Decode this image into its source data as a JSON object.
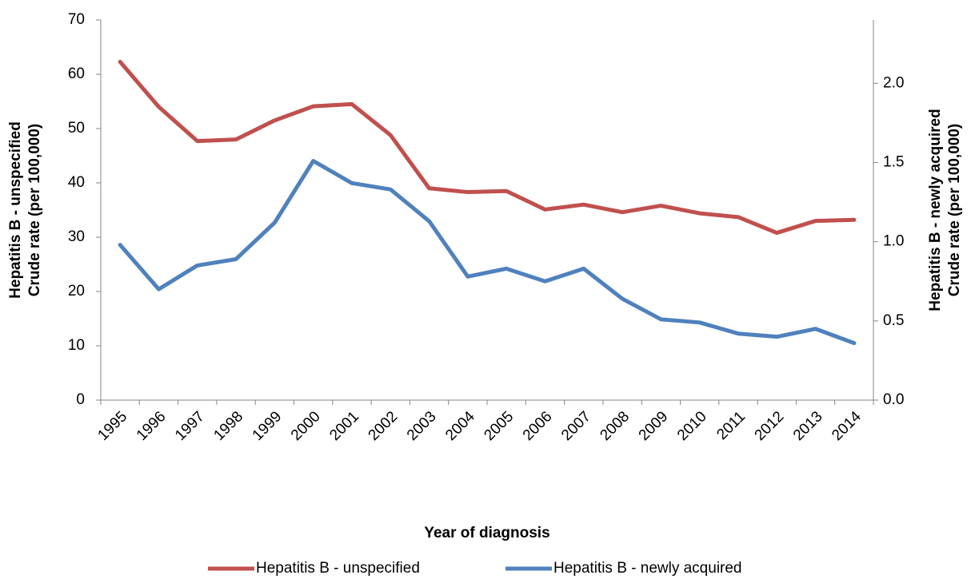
{
  "chart_data": {
    "type": "line",
    "x_label": "Year of diagnosis",
    "y_label": [
      "Hepatitis B - unspecified",
      "Crude rate (per 100,000)"
    ],
    "y2_label": [
      "Hepatitis B - newly acquired",
      "Crude rate (per 100,000)"
    ],
    "categories": [
      "1995",
      "1996",
      "1997",
      "1998",
      "1999",
      "2000",
      "2001",
      "2002",
      "2003",
      "2004",
      "2005",
      "2006",
      "2007",
      "2008",
      "2009",
      "2010",
      "2011",
      "2012",
      "2013",
      "2014"
    ],
    "series": [
      {
        "name": "Hepatitis B - unspecified",
        "color": "#c0504d",
        "axis": "y",
        "values": [
          62.3,
          54,
          47.7,
          48,
          51.5,
          54.1,
          54.5,
          48.8,
          39,
          38.3,
          38.5,
          35.1,
          36,
          34.6,
          35.8,
          34.4,
          33.7,
          30.8,
          33,
          33.2
        ]
      },
      {
        "name": "Hepatitis B - newly acquired",
        "color": "#4f81bd",
        "axis": "y2",
        "values": [
          0.98,
          0.7,
          0.85,
          0.89,
          1.12,
          1.51,
          1.37,
          1.33,
          1.13,
          0.78,
          0.83,
          0.75,
          0.83,
          0.64,
          0.51,
          0.49,
          0.42,
          0.4,
          0.45,
          0.36
        ]
      }
    ],
    "ylim": [
      0,
      70
    ],
    "yticks": [
      0,
      10,
      20,
      30,
      40,
      50,
      60,
      70
    ],
    "y2lim": [
      0,
      2.4
    ],
    "y2ticks": [
      {
        "value": 0,
        "label": "0.0"
      },
      0.5,
      {
        "value": 1,
        "label": "1.0"
      },
      1.5,
      {
        "value": 2,
        "label": "2.0"
      }
    ],
    "grid": false,
    "legend": "bottom"
  }
}
